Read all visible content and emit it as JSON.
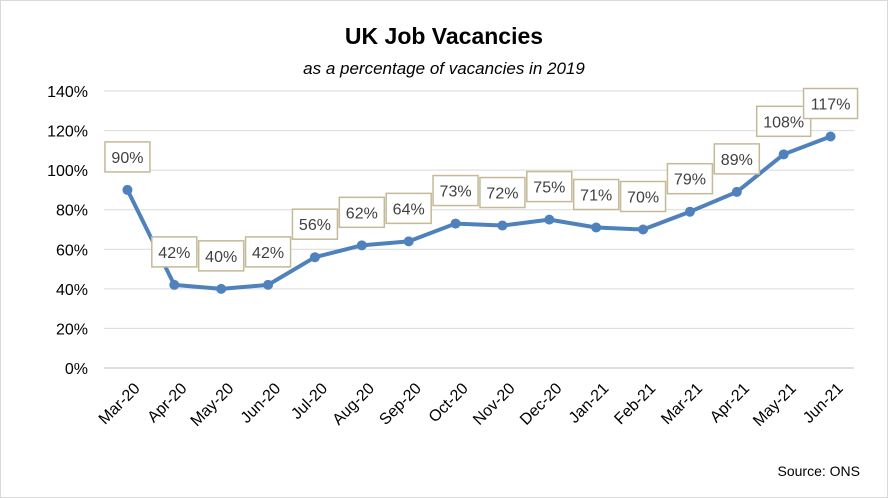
{
  "chart_data": {
    "type": "line",
    "title": "UK Job Vacancies",
    "subtitle": "as a percentage of vacancies in 2019",
    "categories": [
      "Mar-20",
      "Apr-20",
      "May-20",
      "Jun-20",
      "Jul-20",
      "Aug-20",
      "Sep-20",
      "Oct-20",
      "Nov-20",
      "Dec-20",
      "Jan-21",
      "Feb-21",
      "Mar-21",
      "Apr-21",
      "May-21",
      "Jun-21"
    ],
    "series": [
      {
        "values": [
          90,
          42,
          40,
          42,
          56,
          62,
          64,
          73,
          72,
          75,
          71,
          70,
          79,
          89,
          108,
          117
        ],
        "labels": [
          "90%",
          "42%",
          "40%",
          "42%",
          "56%",
          "62%",
          "64%",
          "73%",
          "72%",
          "75%",
          "71%",
          "70%",
          "79%",
          "89%",
          "108%",
          "117%"
        ],
        "color": "#4f81bd"
      }
    ],
    "y_ticks": [
      "0%",
      "20%",
      "40%",
      "60%",
      "80%",
      "100%",
      "120%",
      "140%"
    ],
    "ylim": [
      0,
      140
    ],
    "grid": true,
    "label_box_border": "#c4b998",
    "xlabel": "",
    "ylabel": "",
    "source": "Source: ONS"
  }
}
